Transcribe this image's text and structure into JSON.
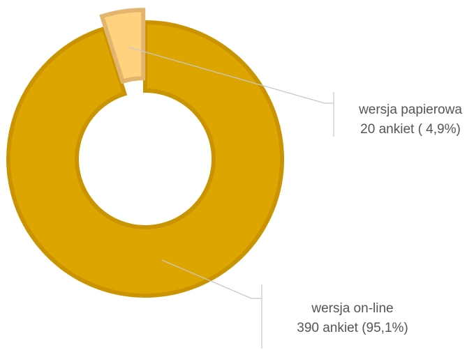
{
  "colors": {
    "online_fill": "#DDA500",
    "online_stroke": "#C99400",
    "paper_fill": "#FFD27F",
    "paper_stroke": "#E2B46E",
    "leader_line": "#C8C8C8",
    "label_text": "#555555"
  },
  "chart_data": {
    "type": "pie",
    "donut": true,
    "title": "",
    "slices": [
      {
        "name": "wersja papierowa",
        "value": 20,
        "percent": 4.9,
        "label_line1": "wersja papierowa",
        "label_line2": "20 ankiet ( 4,9%)",
        "exploded": true,
        "color": "#FFD27F"
      },
      {
        "name": "wersja on-line",
        "value": 390,
        "percent": 95.1,
        "label_line1": "wersja on-line",
        "label_line2": "390 ankiet (95,1%)",
        "exploded": false,
        "color": "#DDA500"
      }
    ]
  }
}
